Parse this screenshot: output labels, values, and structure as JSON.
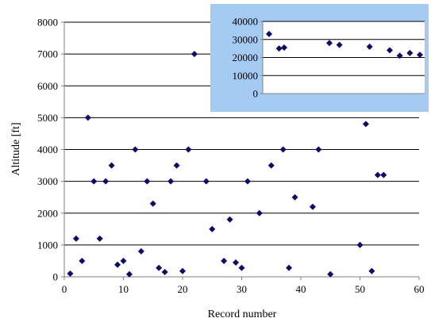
{
  "colors": {
    "marker": "#0b0b6b",
    "grid": "#000000",
    "axis": "#808080",
    "inset_background": "#a6cbf3",
    "inset_plot_background": "#ffffff"
  },
  "chart_data": [
    {
      "type": "scatter",
      "title": "",
      "xlabel": "Record number",
      "ylabel": "Altitude [ft]",
      "xlim": [
        0,
        60
      ],
      "ylim": [
        0,
        8000
      ],
      "x_ticks": [
        0,
        10,
        20,
        30,
        40,
        50,
        60
      ],
      "y_ticks": [
        0,
        1000,
        2000,
        3000,
        4000,
        5000,
        6000,
        7000,
        8000
      ],
      "grid": "horizontal",
      "legend": "none",
      "marker": "diamond",
      "points": [
        {
          "x": 1,
          "y": 100
        },
        {
          "x": 2,
          "y": 1200
        },
        {
          "x": 3,
          "y": 500
        },
        {
          "x": 4,
          "y": 5000
        },
        {
          "x": 5,
          "y": 3000
        },
        {
          "x": 6,
          "y": 1200
        },
        {
          "x": 7,
          "y": 3000
        },
        {
          "x": 8,
          "y": 3500
        },
        {
          "x": 9,
          "y": 380
        },
        {
          "x": 10,
          "y": 500
        },
        {
          "x": 11,
          "y": 80
        },
        {
          "x": 12,
          "y": 4000
        },
        {
          "x": 13,
          "y": 800
        },
        {
          "x": 14,
          "y": 3000
        },
        {
          "x": 15,
          "y": 2300
        },
        {
          "x": 16,
          "y": 280
        },
        {
          "x": 17,
          "y": 150
        },
        {
          "x": 18,
          "y": 3000
        },
        {
          "x": 19,
          "y": 3500
        },
        {
          "x": 20,
          "y": 180
        },
        {
          "x": 21,
          "y": 4000
        },
        {
          "x": 22,
          "y": 7000
        },
        {
          "x": 24,
          "y": 3000
        },
        {
          "x": 25,
          "y": 1500
        },
        {
          "x": 27,
          "y": 500
        },
        {
          "x": 28,
          "y": 1800
        },
        {
          "x": 29,
          "y": 450
        },
        {
          "x": 30,
          "y": 280
        },
        {
          "x": 31,
          "y": 3000
        },
        {
          "x": 33,
          "y": 2000
        },
        {
          "x": 35,
          "y": 3500
        },
        {
          "x": 37,
          "y": 4000
        },
        {
          "x": 38,
          "y": 280
        },
        {
          "x": 39,
          "y": 2500
        },
        {
          "x": 42,
          "y": 2200
        },
        {
          "x": 43,
          "y": 4000
        },
        {
          "x": 45,
          "y": 80
        },
        {
          "x": 50,
          "y": 1000
        },
        {
          "x": 51,
          "y": 4800
        },
        {
          "x": 52,
          "y": 180
        },
        {
          "x": 53,
          "y": 3200
        },
        {
          "x": 54,
          "y": 3200
        }
      ]
    },
    {
      "type": "scatter",
      "title": "",
      "xlabel": "",
      "ylabel": "",
      "inset": true,
      "ylim": [
        0,
        40000
      ],
      "y_ticks": [
        0,
        10000,
        20000,
        30000,
        40000
      ],
      "grid": "horizontal",
      "legend": "none",
      "marker": "diamond",
      "points": [
        {
          "x": 1,
          "y": 33000
        },
        {
          "x": 3,
          "y": 25000
        },
        {
          "x": 4,
          "y": 25500
        },
        {
          "x": 13,
          "y": 28000
        },
        {
          "x": 15,
          "y": 27000
        },
        {
          "x": 21,
          "y": 26000
        },
        {
          "x": 25,
          "y": 24000
        },
        {
          "x": 27,
          "y": 21000
        },
        {
          "x": 29,
          "y": 22500
        },
        {
          "x": 31,
          "y": 21500
        }
      ]
    }
  ]
}
